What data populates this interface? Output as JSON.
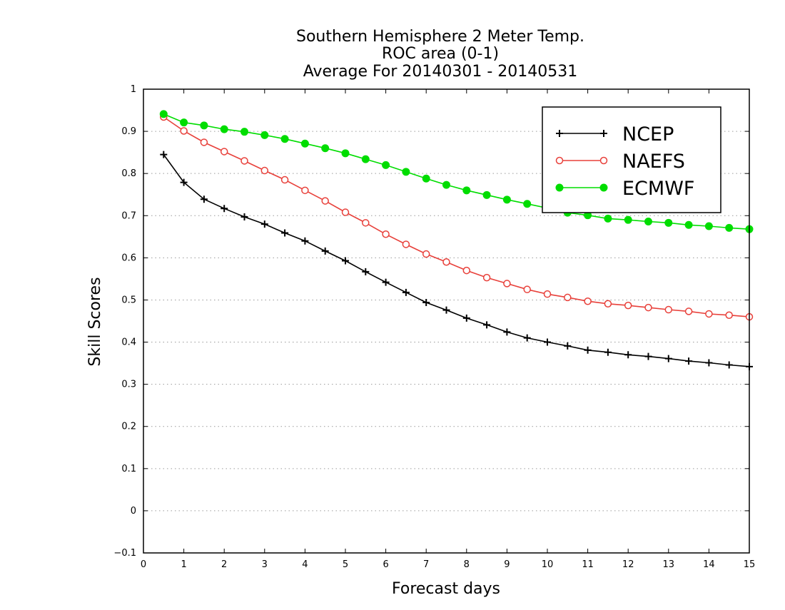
{
  "chart_data": {
    "type": "line",
    "title": [
      "Southern Hemisphere 2 Meter Temp.",
      "ROC area (0-1)",
      "Average For 20140301 - 20140531"
    ],
    "xlabel": "Forecast days",
    "ylabel": "Skill Scores",
    "xlim": [
      0,
      15
    ],
    "ylim": [
      -0.1,
      1
    ],
    "xticks": [
      "0",
      "1",
      "2",
      "3",
      "4",
      "5",
      "6",
      "7",
      "8",
      "9",
      "10",
      "11",
      "12",
      "13",
      "14",
      "15"
    ],
    "yticks": [
      "−0.1",
      "0",
      "0.1",
      "0.2",
      "0.3",
      "0.4",
      "0.5",
      "0.6",
      "0.7",
      "0.8",
      "0.9",
      "1"
    ],
    "grid": "horizontal dotted",
    "legend_position": "top-right",
    "x": [
      0.5,
      1,
      1.5,
      2,
      2.5,
      3,
      3.5,
      4,
      4.5,
      5,
      5.5,
      6,
      6.5,
      7,
      7.5,
      8,
      8.5,
      9,
      9.5,
      10,
      10.5,
      11,
      11.5,
      12,
      12.5,
      13,
      13.5,
      14,
      14.5,
      15
    ],
    "series": [
      {
        "name": "NCEP",
        "color": "#000000",
        "marker": "plus",
        "values": [
          0.845,
          0.779,
          0.739,
          0.717,
          0.697,
          0.68,
          0.659,
          0.64,
          0.616,
          0.593,
          0.567,
          0.542,
          0.518,
          0.494,
          0.476,
          0.457,
          0.441,
          0.424,
          0.41,
          0.4,
          0.391,
          0.381,
          0.376,
          0.37,
          0.366,
          0.361,
          0.355,
          0.351,
          0.346,
          0.342
        ]
      },
      {
        "name": "NAEFS",
        "color": "#e8403a",
        "marker": "open-circle",
        "values": [
          0.934,
          0.901,
          0.874,
          0.852,
          0.83,
          0.807,
          0.785,
          0.76,
          0.735,
          0.708,
          0.683,
          0.656,
          0.632,
          0.609,
          0.59,
          0.57,
          0.553,
          0.539,
          0.525,
          0.514,
          0.506,
          0.497,
          0.491,
          0.487,
          0.482,
          0.477,
          0.473,
          0.467,
          0.464,
          0.46
        ]
      },
      {
        "name": "ECMWF",
        "color": "#00dd00",
        "marker": "filled-circle",
        "values": [
          0.941,
          0.921,
          0.914,
          0.905,
          0.899,
          0.891,
          0.882,
          0.871,
          0.86,
          0.848,
          0.834,
          0.82,
          0.804,
          0.788,
          0.773,
          0.76,
          0.749,
          0.738,
          0.728,
          0.718,
          0.707,
          0.701,
          0.693,
          0.69,
          0.686,
          0.683,
          0.678,
          0.675,
          0.671,
          0.668
        ]
      }
    ]
  }
}
